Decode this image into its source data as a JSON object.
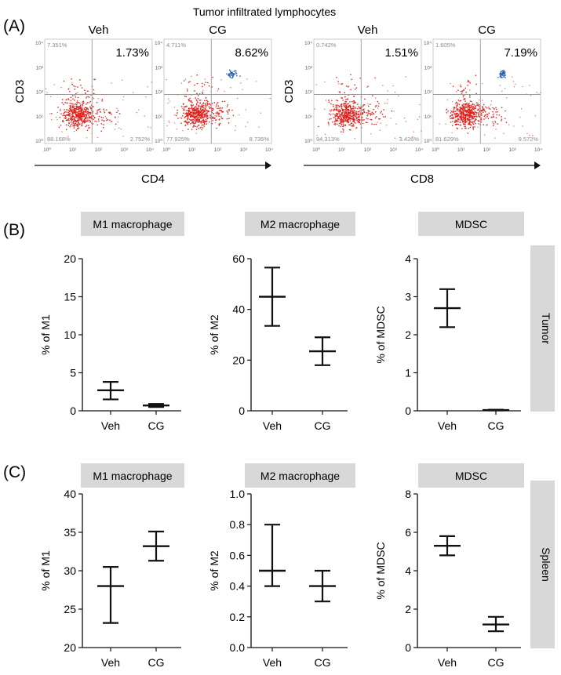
{
  "figure": {
    "main_title": "Tumor infiltrated lymphocytes",
    "panel_labels": [
      "(A)",
      "(B)",
      "(C)"
    ]
  },
  "flow": {
    "ylabel": "CD3",
    "groups": [
      {
        "xlabel": "CD4",
        "plots": [
          {
            "title": "Veh",
            "highlight": "1.73%",
            "q_ul": "7.351%",
            "q_ll": "88.168%",
            "q_lr": "2.752%",
            "has_blue": false
          },
          {
            "title": "CG",
            "highlight": "8.62%",
            "q_ul": "4.711%",
            "q_ll": "77.925%",
            "q_lr": "8.735%",
            "has_blue": true
          }
        ]
      },
      {
        "xlabel": "CD8",
        "plots": [
          {
            "title": "Veh",
            "highlight": "1.51%",
            "q_ul": "0.742%",
            "q_ll": "94.313%",
            "q_lr": "3.426%",
            "has_blue": false
          },
          {
            "title": "CG",
            "highlight": "7.19%",
            "q_ul": "1.605%",
            "q_ll": "81.629%",
            "q_lr": "9.572%",
            "has_blue": true
          }
        ]
      }
    ],
    "tick_labels": [
      "10⁰",
      "10¹",
      "10²",
      "10³",
      "10⁴"
    ]
  },
  "colors": {
    "dots": "#e0201c",
    "dots_blue": "#2b58a8",
    "strip_bg": "#d8d8d8",
    "axis": "#111111",
    "gate": "#9a9a9a",
    "quadrant_text": "#8a8a8a"
  },
  "chart_data": [
    {
      "type": "scatter",
      "row": "B",
      "strip": "M1 macrophage",
      "ylabel": "% of M1",
      "categories": [
        "Veh",
        "CG"
      ],
      "ylim": [
        0,
        20
      ],
      "yticks": [
        "0",
        "5",
        "10",
        "15",
        "20"
      ],
      "mean": [
        2.7,
        0.7
      ],
      "upper": [
        3.8,
        0.9
      ],
      "lower": [
        1.5,
        0.5
      ]
    },
    {
      "type": "scatter",
      "row": "B",
      "strip": "M2 macrophage",
      "ylabel": "% of M2",
      "categories": [
        "Veh",
        "CG"
      ],
      "ylim": [
        0,
        60
      ],
      "yticks": [
        "0",
        "20",
        "40",
        "60"
      ],
      "mean": [
        45,
        23.5
      ],
      "upper": [
        56.5,
        29
      ],
      "lower": [
        33.5,
        18
      ]
    },
    {
      "type": "scatter",
      "row": "B",
      "strip": "MDSC",
      "side": "Tumor",
      "ylabel": "% of MDSC",
      "categories": [
        "Veh",
        "CG"
      ],
      "ylim": [
        0,
        4
      ],
      "yticks": [
        "0",
        "1",
        "2",
        "3",
        "4"
      ],
      "mean": [
        2.7,
        0.02
      ],
      "upper": [
        3.2,
        0.03
      ],
      "lower": [
        2.2,
        0.01
      ]
    },
    {
      "type": "scatter",
      "row": "C",
      "strip": "M1 macrophage",
      "ylabel": "% of M1",
      "categories": [
        "Veh",
        "CG"
      ],
      "ylim": [
        20,
        40
      ],
      "yticks": [
        "20",
        "25",
        "30",
        "35",
        "40"
      ],
      "mean": [
        28,
        33.2
      ],
      "upper": [
        30.5,
        35.1
      ],
      "lower": [
        23.2,
        31.3
      ]
    },
    {
      "type": "scatter",
      "row": "C",
      "strip": "M2 macrophage",
      "ylabel": "% of M2",
      "categories": [
        "Veh",
        "CG"
      ],
      "ylim": [
        0,
        1
      ],
      "yticks": [
        "0.0",
        "0.2",
        "0.4",
        "0.6",
        "0.8",
        "1.0"
      ],
      "mean": [
        0.5,
        0.4
      ],
      "upper": [
        0.8,
        0.5
      ],
      "lower": [
        0.4,
        0.3
      ]
    },
    {
      "type": "scatter",
      "row": "C",
      "strip": "MDSC",
      "side": "Spleen",
      "ylabel": "% of MDSC",
      "categories": [
        "Veh",
        "CG"
      ],
      "ylim": [
        0,
        8
      ],
      "yticks": [
        "0",
        "2",
        "4",
        "6",
        "8"
      ],
      "mean": [
        5.3,
        1.2
      ],
      "upper": [
        5.8,
        1.6
      ],
      "lower": [
        4.8,
        0.85
      ]
    }
  ]
}
